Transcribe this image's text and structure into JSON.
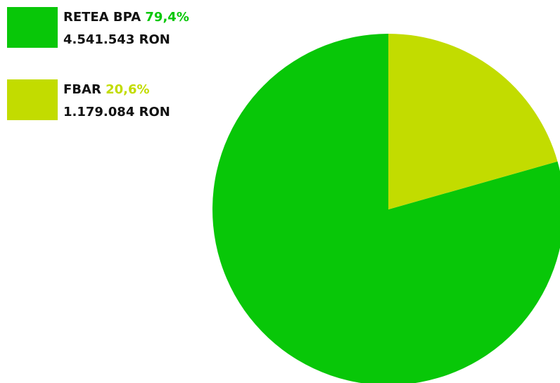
{
  "chart_data": {
    "type": "pie",
    "categories": [
      "RETEA BPA",
      "FBAR"
    ],
    "values": [
      79.4,
      20.6
    ],
    "value_labels": [
      "79,4%",
      "20,6%"
    ],
    "amount_labels": [
      "4.541.543 RON",
      "1.179.084 RON"
    ],
    "colors": [
      "#08c708",
      "#c2dc00"
    ]
  }
}
